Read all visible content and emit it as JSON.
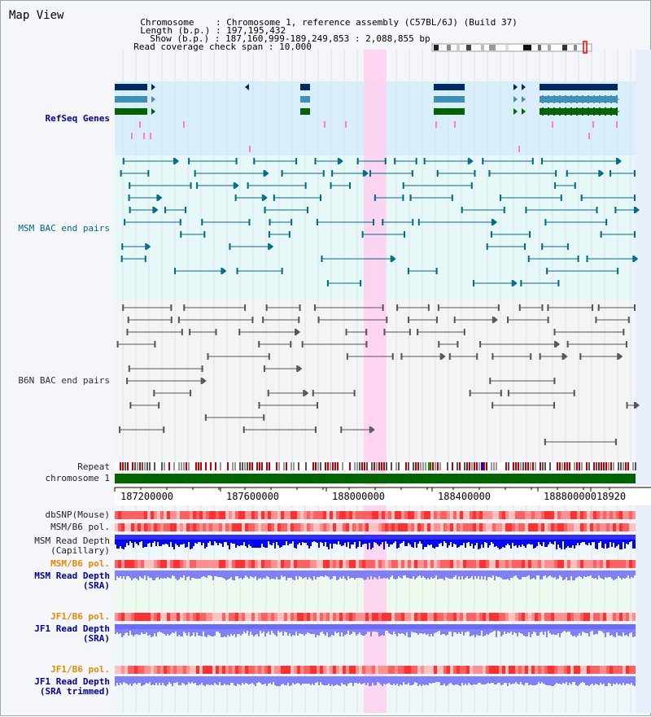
{
  "app": {
    "title": "Map View"
  },
  "info": {
    "chromosome_label": "Chromosome",
    "chromosome_value": "Chromosome 1, reference assembly (C57BL/6J) (Build 37)",
    "length_label": "Length (b.p.)",
    "length_value": "197,195,432",
    "show_label": "Show (b.p.)",
    "show_value": "187,160,999-189,249,853 : 2,088,855 bp",
    "coverage_label": "Read coverage check span",
    "coverage_value": "10,000"
  },
  "tracks": {
    "refseq": "RefSeq Genes",
    "msm_bac": "MSM BAC end pairs",
    "b6n_bac": "B6N BAC end pairs",
    "repeat": "Repeat",
    "chromosome": "chromosome 1",
    "dbsnp": "dbSNP(Mouse)",
    "msm_b6_pol_1": "MSM/B6 pol.",
    "msm_read_depth_cap_1": "MSM Read Depth",
    "msm_read_depth_cap_2": "(Capillary)",
    "msm_b6_pol_2": "MSM/B6 pol.",
    "msm_read_depth_sra_1": "MSM Read Depth",
    "msm_read_depth_sra_2": "(SRA)",
    "jf1_b6_pol_1": "JF1/B6 pol.",
    "jf1_read_depth_sra_1": "JF1 Read Depth",
    "jf1_read_depth_sra_2": "(SRA)",
    "jf1_b6_pol_2": "JF1/B6 pol.",
    "jf1_read_depth_trim_1": "JF1 Read Depth",
    "jf1_read_depth_trim_2": "(SRA trimmed)"
  },
  "axis": {
    "ticks": [
      "187200000",
      "187600000",
      "188000000",
      "188400000",
      "188800000",
      "18920"
    ]
  },
  "colors": {
    "gene_navy": "#002a66",
    "gene_steel": "#3f8fb8",
    "gene_green": "#006400",
    "bac_teal": "#006a8a",
    "bac_gray": "#555555",
    "highlight": "#ffd0f0",
    "depth_blue": "#0000ff",
    "depth_light": "#8080ff",
    "pol_red": "#ff4040"
  }
}
